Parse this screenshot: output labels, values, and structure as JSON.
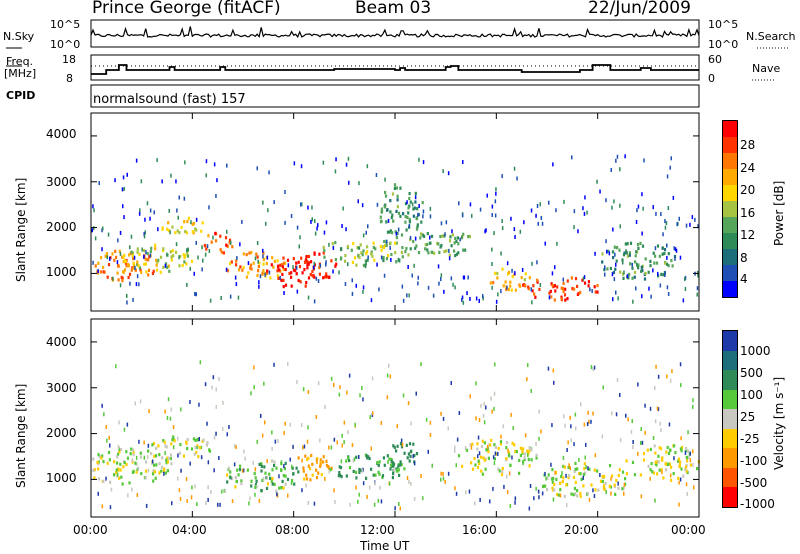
{
  "header": {
    "station": "Prince George (fitACF)",
    "beam": "Beam 03",
    "date": "22/Jun/2009"
  },
  "sky_panel": {
    "left_label": "N.Sky",
    "right_label": "N.Search",
    "left_ticks": [
      "10^5",
      "10^0"
    ],
    "right_ticks": [
      "10^5",
      "10^0"
    ]
  },
  "freq_panel": {
    "left_label_line1": "Freq.",
    "left_label_line2": "[MHz]",
    "right_label": "Nave",
    "left_ticks": [
      "18",
      "8"
    ],
    "right_ticks": [
      "60",
      "0"
    ]
  },
  "cpid": {
    "label": "CPID",
    "value": "normalsound (fast) 157"
  },
  "power_panel": {
    "ylabel": "Slant Range [km]",
    "yticks": [
      "4000",
      "3000",
      "2000",
      "1000"
    ],
    "colorbar_label": "Power [dB]",
    "colorbar_ticks": [
      "28",
      "24",
      "20",
      "16",
      "12",
      "8",
      "4"
    ],
    "colors": [
      "#ff0000",
      "#ff3300",
      "#ff7700",
      "#ffaa00",
      "#ffd700",
      "#a6c441",
      "#55a65a",
      "#2e8b57",
      "#1c6e7a",
      "#1e4fb4",
      "#0000ff"
    ]
  },
  "velocity_panel": {
    "ylabel": "Slant Range [km]",
    "yticks": [
      "4000",
      "3000",
      "2000",
      "1000"
    ],
    "colorbar_label": "Velocity [m s⁻¹]",
    "colorbar_ticks": [
      "1000",
      "500",
      "100",
      "25",
      "-25",
      "-100",
      "-500",
      "-1000"
    ],
    "colors": [
      "#1e3aa8",
      "#1c6e7a",
      "#2e8b57",
      "#55c93a",
      "#c8c8c0",
      "#ffcc00",
      "#ff9900",
      "#ff5500",
      "#ff0000"
    ]
  },
  "xaxis": {
    "ticks": [
      "00:00",
      "04:00",
      "08:00",
      "12:00",
      "16:00",
      "20:00",
      "00:00"
    ],
    "label": "Time UT"
  },
  "chart_data": [
    {
      "type": "heatmap",
      "title": "Power",
      "ylabel": "Slant Range [km]",
      "xlabel": "Time UT",
      "ylim": [
        180,
        4500
      ],
      "zlim": [
        0,
        30
      ],
      "colorbar": "Power [dB]",
      "blobs": [
        {
          "t": 1.3,
          "r": 1200,
          "dt": 1.4,
          "dr": 350,
          "p": 24
        },
        {
          "t": 2.5,
          "r": 1350,
          "dt": 1.5,
          "dr": 300,
          "p": 16
        },
        {
          "t": 3.6,
          "r": 2050,
          "dt": 0.9,
          "dr": 200,
          "p": 18
        },
        {
          "t": 5.0,
          "r": 1700,
          "dt": 0.6,
          "dr": 250,
          "p": 26
        },
        {
          "t": 6.5,
          "r": 1200,
          "dt": 1.3,
          "dr": 300,
          "p": 22
        },
        {
          "t": 7.9,
          "r": 1050,
          "dt": 1.0,
          "dr": 350,
          "p": 30
        },
        {
          "t": 9.0,
          "r": 1200,
          "dt": 0.8,
          "dr": 300,
          "p": 28
        },
        {
          "t": 10.8,
          "r": 1500,
          "dt": 1.8,
          "dr": 300,
          "p": 14
        },
        {
          "t": 12.2,
          "r": 2400,
          "dt": 0.9,
          "dr": 600,
          "p": 10
        },
        {
          "t": 13.8,
          "r": 1700,
          "dt": 1.4,
          "dr": 300,
          "p": 12
        },
        {
          "t": 16.5,
          "r": 900,
          "dt": 0.8,
          "dr": 250,
          "p": 20
        },
        {
          "t": 18.5,
          "r": 700,
          "dt": 1.6,
          "dr": 250,
          "p": 27
        },
        {
          "t": 21.5,
          "r": 1300,
          "dt": 1.6,
          "dr": 400,
          "p": 10
        }
      ]
    },
    {
      "type": "heatmap",
      "title": "Velocity",
      "ylabel": "Slant Range [km]",
      "xlabel": "Time UT",
      "ylim": [
        180,
        4500
      ],
      "zlim": [
        -1000,
        1000
      ],
      "colorbar": "Velocity [m s⁻¹]",
      "blobs": [
        {
          "t": 1.5,
          "r": 1300,
          "dt": 1.8,
          "dr": 400,
          "v": 0
        },
        {
          "t": 3.5,
          "r": 1700,
          "dt": 1.2,
          "dr": 300,
          "v": 0
        },
        {
          "t": 6.8,
          "r": 1100,
          "dt": 1.6,
          "dr": 350,
          "v": 60
        },
        {
          "t": 8.7,
          "r": 1300,
          "dt": 0.8,
          "dr": 300,
          "v": -150
        },
        {
          "t": 10.9,
          "r": 1300,
          "dt": 1.6,
          "dr": 300,
          "v": 150
        },
        {
          "t": 12.3,
          "r": 1600,
          "dt": 0.6,
          "dr": 300,
          "v": 400
        },
        {
          "t": 16.0,
          "r": 1500,
          "dt": 1.6,
          "dr": 400,
          "v": 0
        },
        {
          "t": 19.5,
          "r": 1000,
          "dt": 1.8,
          "dr": 400,
          "v": 0
        },
        {
          "t": 22.5,
          "r": 1400,
          "dt": 1.5,
          "dr": 400,
          "v": 0
        }
      ]
    }
  ]
}
